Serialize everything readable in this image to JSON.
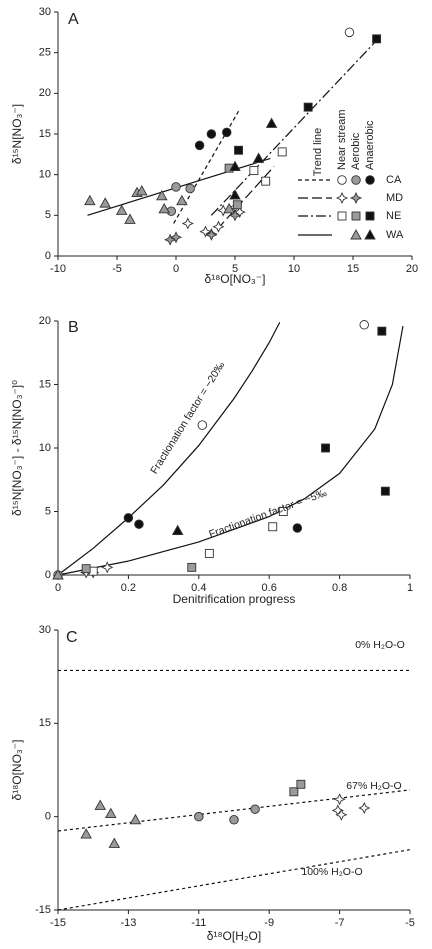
{
  "chart_data": [
    {
      "type": "scatter",
      "label": "A",
      "x_label": "δ¹⁸O[NO₃⁻]",
      "y_label": "δ¹⁵N[NO₃⁻]",
      "xlim": [
        -10,
        20
      ],
      "xticks": [
        -10,
        -5,
        0,
        5,
        10,
        15,
        20
      ],
      "ylim": [
        0,
        30
      ],
      "yticks": [
        0,
        5,
        10,
        15,
        20,
        25,
        30
      ],
      "series": [
        {
          "marker": "circle",
          "color": "#ffffff",
          "x": [
            14.7
          ],
          "values": [
            27.5
          ]
        },
        {
          "marker": "circle",
          "color": "#9a9a9a",
          "x": [
            0,
            1.2,
            -0.4
          ],
          "values": [
            8.5,
            8.3,
            5.5
          ]
        },
        {
          "marker": "circle",
          "color": "#111111",
          "x": [
            2,
            3,
            4.3
          ],
          "values": [
            13.6,
            15,
            15.2
          ]
        },
        {
          "marker": "star",
          "color": "#ffffff",
          "x": [
            1,
            2.5,
            3,
            3.6,
            4,
            5,
            5.4
          ],
          "values": [
            4,
            3,
            2.7,
            3.6,
            5.6,
            6,
            5.4
          ]
        },
        {
          "marker": "star",
          "color": "#9a9a9a",
          "x": [
            -0.5,
            0,
            3,
            5
          ],
          "values": [
            2,
            2.3,
            2.6,
            5
          ]
        },
        {
          "marker": "square",
          "color": "#ffffff",
          "x": [
            6.6,
            7.6,
            9
          ],
          "values": [
            10.5,
            9.2,
            12.8
          ]
        },
        {
          "marker": "square",
          "color": "#9a9a9a",
          "x": [
            4.5,
            5.2
          ],
          "values": [
            10.8,
            6.3
          ]
        },
        {
          "marker": "square",
          "color": "#111111",
          "x": [
            5.3,
            11.2,
            17
          ],
          "values": [
            13,
            18.3,
            26.7
          ]
        },
        {
          "marker": "triangle",
          "color": "#9a9a9a",
          "x": [
            -7.3,
            -6,
            -4.6,
            -3.9,
            -3.3,
            -2.9,
            -1.2,
            -1,
            0.5,
            4.5
          ],
          "values": [
            6.8,
            6.5,
            5.6,
            4.5,
            7.8,
            8,
            7.4,
            5.8,
            6.8,
            5.8
          ]
        },
        {
          "marker": "triangle",
          "color": "#111111",
          "x": [
            5,
            7,
            8.1,
            5
          ],
          "values": [
            11,
            12,
            16.3,
            7.5
          ]
        }
      ],
      "lines": [
        {
          "dash": "4,3",
          "x": [
            -0.2,
            5.3
          ],
          "values": [
            4,
            17.8
          ]
        },
        {
          "dash": "10,4",
          "x": [
            3.5,
            8.3
          ],
          "values": [
            3.3,
            11
          ]
        },
        {
          "dash": "10,3,2,3",
          "x": [
            3,
            17
          ],
          "values": [
            5,
            26.5
          ]
        },
        {
          "dash": "none",
          "x": [
            -7.5,
            8
          ],
          "values": [
            5,
            12
          ]
        }
      ],
      "legend": {
        "title": "Trend line",
        "columns": [
          "Near stream",
          "Aerobic",
          "Anaerobic"
        ],
        "rows": [
          {
            "label": "CA",
            "dash": "4,3",
            "marker": "circle",
            "colors": [
              "#ffffff",
              "#9a9a9a",
              "#111111"
            ]
          },
          {
            "label": "MD",
            "dash": "10,4",
            "marker": "star",
            "colors": [
              "#ffffff",
              "#9a9a9a",
              null
            ]
          },
          {
            "label": "NE",
            "dash": "10,3,2,3",
            "marker": "square",
            "colors": [
              "#ffffff",
              "#9a9a9a",
              "#111111"
            ]
          },
          {
            "label": "WA",
            "dash": "none",
            "marker": "triangle",
            "colors": [
              null,
              "#9a9a9a",
              "#111111"
            ]
          }
        ]
      }
    },
    {
      "type": "scatter",
      "label": "B",
      "x_label": "Denitrification progress",
      "y_label": "δ¹⁵N[NO₃⁻] - δ¹⁵N[NO₃⁻]⁰",
      "xlim": [
        0,
        1
      ],
      "xticks": [
        0,
        0.2,
        0.4,
        0.6,
        0.8,
        1
      ],
      "ylim": [
        0,
        20
      ],
      "yticks": [
        0,
        5,
        10,
        15,
        20
      ],
      "series": [
        {
          "marker": "circle",
          "color": "#ffffff",
          "x": [
            0.41,
            0.87
          ],
          "values": [
            11.8,
            19.7
          ]
        },
        {
          "marker": "circle",
          "color": "#9a9a9a",
          "x": [
            0
          ],
          "values": [
            0
          ]
        },
        {
          "marker": "circle",
          "color": "#111111",
          "x": [
            0.2,
            0.23,
            0.68
          ],
          "values": [
            4.5,
            4,
            3.7
          ]
        },
        {
          "marker": "star",
          "color": "#ffffff",
          "x": [
            0.08,
            0.1,
            0.14
          ],
          "values": [
            0.2,
            0.2,
            0.6
          ]
        },
        {
          "marker": "square",
          "color": "#ffffff",
          "x": [
            0.1,
            0.43,
            0.61,
            0.64
          ],
          "values": [
            0.3,
            1.7,
            3.8,
            5
          ]
        },
        {
          "marker": "square",
          "color": "#9a9a9a",
          "x": [
            0.08,
            0.38
          ],
          "values": [
            0.5,
            0.6
          ]
        },
        {
          "marker": "square",
          "color": "#111111",
          "x": [
            0.76,
            0.92,
            0.93
          ],
          "values": [
            10,
            19.2,
            6.6
          ]
        },
        {
          "marker": "triangle",
          "color": "#9a9a9a",
          "x": [
            0
          ],
          "values": [
            0
          ]
        },
        {
          "marker": "triangle",
          "color": "#111111",
          "x": [
            0.34
          ],
          "values": [
            3.5
          ]
        }
      ],
      "lines": [
        {
          "dash": "none",
          "x": [
            0,
            0.1,
            0.2,
            0.3,
            0.4,
            0.5,
            0.55,
            0.6,
            0.63
          ],
          "values": [
            0,
            2.1,
            4.5,
            7.1,
            10.2,
            13.9,
            16,
            18.3,
            19.9
          ]
        },
        {
          "dash": "none",
          "x": [
            0,
            0.2,
            0.4,
            0.6,
            0.7,
            0.8,
            0.9,
            0.95,
            0.98
          ],
          "values": [
            0,
            1.1,
            2.6,
            4.6,
            6,
            8,
            11.5,
            15,
            19.6
          ]
        }
      ],
      "annotations": [
        "Fractionation factor = −20‰",
        "Fractionation factor = −5‰"
      ]
    },
    {
      "type": "scatter",
      "label": "C",
      "x_label": "δ¹⁸O[H₂O]",
      "y_label": "δ¹⁸O[NO₃⁻]",
      "xlim": [
        -15,
        -5
      ],
      "xticks": [
        -15,
        -13,
        -11,
        -9,
        -7,
        -5
      ],
      "ylim": [
        -15,
        30
      ],
      "yticks": [
        -15,
        0,
        15,
        30
      ],
      "series": [
        {
          "marker": "triangle",
          "color": "#9a9a9a",
          "x": [
            -14.2,
            -13.8,
            -13.5,
            -13.4,
            -12.8
          ],
          "values": [
            -2.8,
            1.8,
            0.5,
            -4.3,
            -0.5
          ]
        },
        {
          "marker": "circle",
          "color": "#9a9a9a",
          "x": [
            -11,
            -10,
            -9.4
          ],
          "values": [
            0,
            -0.5,
            1.2
          ]
        },
        {
          "marker": "square",
          "color": "#9a9a9a",
          "x": [
            -8.3,
            -8.1
          ],
          "values": [
            4,
            5.2
          ]
        },
        {
          "marker": "star",
          "color": "#ffffff",
          "x": [
            -7,
            -7.05,
            -6.95,
            -6.3
          ],
          "values": [
            2.8,
            1,
            0.3,
            1.4
          ]
        }
      ],
      "lines": [
        {
          "dash": "3,3",
          "x": [
            -15,
            -5
          ],
          "values": [
            23.5,
            23.5
          ]
        },
        {
          "dash": "3,3",
          "x": [
            -15,
            -5
          ],
          "values": [
            -2.3,
            4.3
          ]
        },
        {
          "dash": "3,3",
          "x": [
            -15,
            -5
          ],
          "values": [
            -15,
            -5.3
          ]
        }
      ],
      "annotations": [
        "0% H₂O-O",
        "67% H₂O-O",
        "100% H₂O-O"
      ]
    }
  ]
}
